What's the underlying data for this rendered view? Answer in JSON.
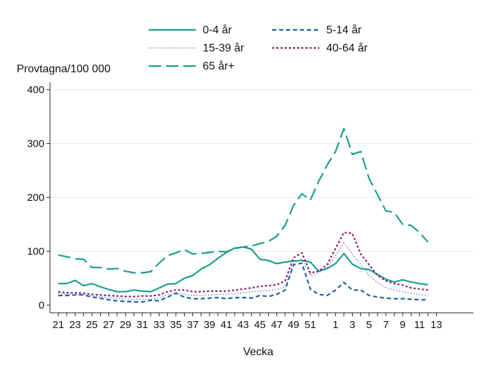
{
  "chart_data": {
    "type": "line",
    "ylabel": "Provtagna/100 000",
    "xlabel": "Vecka",
    "ylim": [
      0,
      420
    ],
    "yticks": [
      0,
      100,
      200,
      300,
      400
    ],
    "grid": "horizontal",
    "legend_position": "top",
    "x_labels": [
      "21",
      "22",
      "23",
      "24",
      "25",
      "26",
      "27",
      "28",
      "29",
      "30",
      "31",
      "32",
      "33",
      "34",
      "35",
      "36",
      "37",
      "38",
      "39",
      "40",
      "41",
      "42",
      "43",
      "44",
      "45",
      "46",
      "47",
      "48",
      "49",
      "50",
      "51",
      "52",
      "53",
      "1",
      "2",
      "3",
      "4",
      "5",
      "6",
      "7",
      "8",
      "9",
      "10",
      "11",
      "12",
      "13"
    ],
    "x_tick_labels": [
      "21",
      "23",
      "25",
      "27",
      "29",
      "31",
      "33",
      "35",
      "37",
      "39",
      "41",
      "43",
      "45",
      "47",
      "49",
      "51",
      "1",
      "3",
      "5",
      "7",
      "9",
      "11",
      "13"
    ],
    "series": [
      {
        "name": "0-4 år",
        "color": "#1a9e8c",
        "dash": "solid",
        "values": [
          40,
          40,
          46,
          36,
          40,
          34,
          29,
          25,
          25,
          28,
          26,
          25,
          32,
          39,
          40,
          50,
          55,
          67,
          75,
          87,
          98,
          106,
          108,
          104,
          85,
          83,
          77,
          80,
          82,
          83,
          80,
          63,
          68,
          77,
          96,
          76,
          68,
          66,
          57,
          48,
          43,
          47,
          43,
          40,
          38,
          null
        ]
      },
      {
        "name": "5-14 år",
        "color": "#1f5fa8",
        "dash": "6 4",
        "values": [
          18,
          18,
          19,
          19,
          15,
          13,
          10,
          8,
          7,
          6,
          6,
          9,
          8,
          15,
          22,
          15,
          12,
          12,
          13,
          14,
          12,
          14,
          14,
          13,
          18,
          16,
          20,
          28,
          75,
          78,
          30,
          20,
          18,
          28,
          42,
          28,
          28,
          18,
          15,
          13,
          12,
          12,
          11,
          10,
          10,
          null
        ]
      },
      {
        "name": "15-39 år",
        "color": "#4a6fb0",
        "dash": "1.2 3",
        "values": [
          22,
          20,
          20,
          20,
          17,
          16,
          14,
          13,
          11,
          11,
          11,
          11,
          13,
          20,
          23,
          20,
          18,
          18,
          19,
          20,
          20,
          21,
          23,
          25,
          26,
          27,
          29,
          34,
          78,
          85,
          55,
          60,
          70,
          92,
          115,
          95,
          75,
          55,
          42,
          32,
          28,
          25,
          22,
          20,
          18,
          null
        ]
      },
      {
        "name": "40-64 år",
        "color": "#8b1a6b",
        "dash": "3 3",
        "values": [
          25,
          23,
          23,
          22,
          20,
          19,
          18,
          17,
          16,
          16,
          17,
          17,
          19,
          25,
          28,
          28,
          25,
          25,
          26,
          26,
          26,
          28,
          30,
          32,
          35,
          36,
          38,
          45,
          88,
          97,
          60,
          63,
          75,
          105,
          135,
          133,
          95,
          75,
          55,
          45,
          40,
          37,
          32,
          30,
          28,
          null
        ]
      },
      {
        "name": "65 år+",
        "color": "#1a9e8c",
        "dash": "18 7",
        "values": [
          93,
          90,
          86,
          85,
          70,
          70,
          67,
          68,
          63,
          60,
          60,
          62,
          78,
          92,
          97,
          103,
          95,
          96,
          98,
          100,
          99,
          105,
          108,
          110,
          114,
          118,
          128,
          148,
          185,
          207,
          195,
          230,
          260,
          285,
          328,
          280,
          285,
          235,
          205,
          175,
          172,
          150,
          148,
          135,
          117,
          null
        ]
      }
    ]
  }
}
